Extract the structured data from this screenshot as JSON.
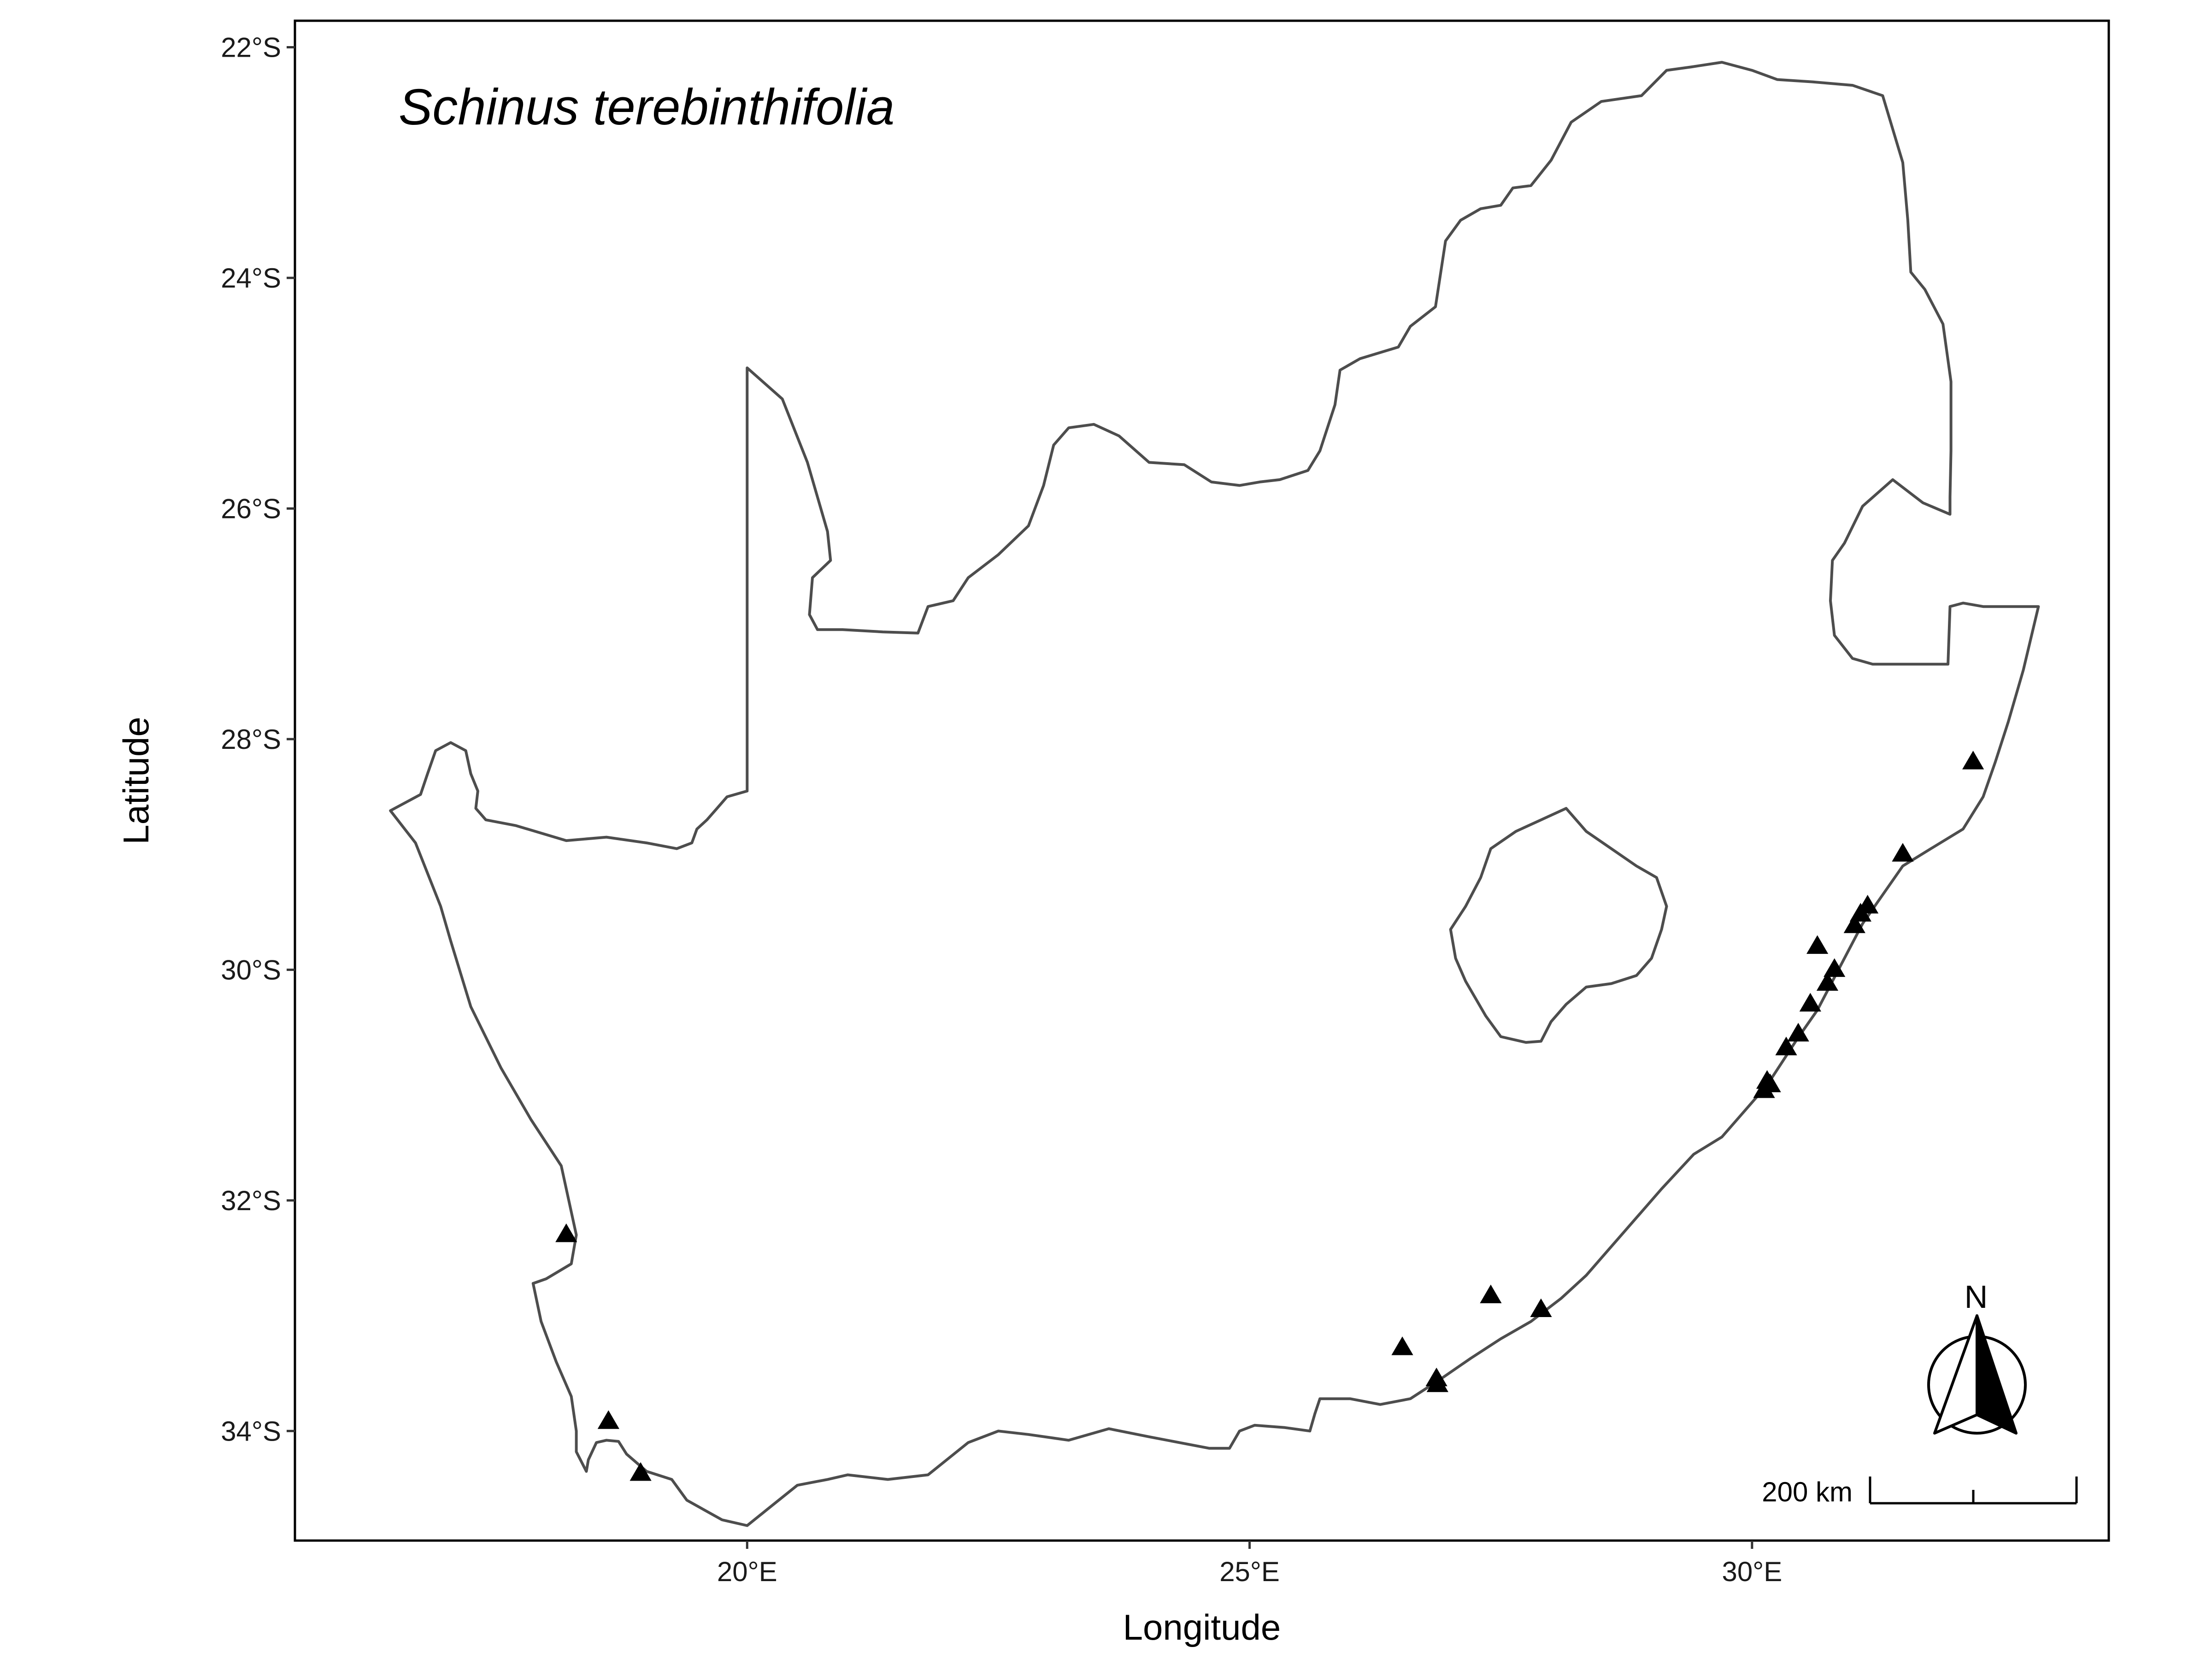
{
  "title": "Schinus terebinthifolia",
  "chart_data": {
    "type": "scatter",
    "title": "Schinus terebinthifolia",
    "xlabel": "Longitude",
    "ylabel": "Latitude",
    "xlim": [
      15.5,
      33.55
    ],
    "ylim": [
      -34.95,
      -21.77
    ],
    "x_ticks": [
      20,
      25,
      30
    ],
    "x_tick_labels": [
      "20°E",
      "25°E",
      "30°E"
    ],
    "y_ticks": [
      -22,
      -24,
      -26,
      -28,
      -30,
      -32,
      -34
    ],
    "y_tick_labels": [
      "22°S",
      "24°S",
      "26°S",
      "28°S",
      "30°S",
      "32°S",
      "34°S"
    ],
    "grid": false,
    "legend": "none",
    "marker": "triangle",
    "marker_color": "#000000",
    "outline_color": "#4d4d4d",
    "points": [
      {
        "lon": 18.2,
        "lat": -32.3
      },
      {
        "lon": 18.62,
        "lat": -33.92
      },
      {
        "lon": 18.94,
        "lat": -34.37
      },
      {
        "lon": 26.52,
        "lat": -33.28
      },
      {
        "lon": 26.86,
        "lat": -33.55
      },
      {
        "lon": 26.87,
        "lat": -33.6
      },
      {
        "lon": 27.4,
        "lat": -32.83
      },
      {
        "lon": 27.9,
        "lat": -32.95
      },
      {
        "lon": 30.12,
        "lat": -31.05
      },
      {
        "lon": 30.15,
        "lat": -30.97
      },
      {
        "lon": 30.18,
        "lat": -31.0
      },
      {
        "lon": 30.34,
        "lat": -30.68
      },
      {
        "lon": 30.46,
        "lat": -30.56
      },
      {
        "lon": 30.58,
        "lat": -30.3
      },
      {
        "lon": 30.75,
        "lat": -30.12
      },
      {
        "lon": 30.82,
        "lat": -30.0
      },
      {
        "lon": 30.65,
        "lat": -29.8
      },
      {
        "lon": 31.02,
        "lat": -29.62
      },
      {
        "lon": 31.08,
        "lat": -29.52
      },
      {
        "lon": 31.15,
        "lat": -29.45
      },
      {
        "lon": 31.5,
        "lat": -29.0
      },
      {
        "lon": 32.2,
        "lat": -28.2
      }
    ],
    "outline": {
      "south_africa": [
        [
          16.45,
          -28.62
        ],
        [
          16.75,
          -28.48
        ],
        [
          16.82,
          -28.3
        ],
        [
          16.9,
          -28.1
        ],
        [
          17.05,
          -28.03
        ],
        [
          17.2,
          -28.1
        ],
        [
          17.25,
          -28.3
        ],
        [
          17.32,
          -28.45
        ],
        [
          17.3,
          -28.6
        ],
        [
          17.4,
          -28.7
        ],
        [
          17.7,
          -28.75
        ],
        [
          18.2,
          -28.88
        ],
        [
          18.6,
          -28.85
        ],
        [
          19.0,
          -28.9
        ],
        [
          19.3,
          -28.95
        ],
        [
          19.45,
          -28.9
        ],
        [
          19.5,
          -28.78
        ],
        [
          19.6,
          -28.7
        ],
        [
          19.7,
          -28.6
        ],
        [
          19.8,
          -28.5
        ],
        [
          20.0,
          -28.45
        ],
        [
          20.0,
          -24.78
        ],
        [
          20.35,
          -25.05
        ],
        [
          20.6,
          -25.6
        ],
        [
          20.8,
          -26.2
        ],
        [
          20.83,
          -26.45
        ],
        [
          20.65,
          -26.6
        ],
        [
          20.62,
          -26.92
        ],
        [
          20.7,
          -27.05
        ],
        [
          20.95,
          -27.05
        ],
        [
          21.35,
          -27.07
        ],
        [
          21.7,
          -27.08
        ],
        [
          21.8,
          -26.85
        ],
        [
          22.05,
          -26.8
        ],
        [
          22.2,
          -26.6
        ],
        [
          22.5,
          -26.4
        ],
        [
          22.8,
          -26.15
        ],
        [
          22.95,
          -25.8
        ],
        [
          23.05,
          -25.45
        ],
        [
          23.2,
          -25.3
        ],
        [
          23.45,
          -25.27
        ],
        [
          23.7,
          -25.37
        ],
        [
          24.0,
          -25.6
        ],
        [
          24.35,
          -25.62
        ],
        [
          24.62,
          -25.77
        ],
        [
          24.9,
          -25.8
        ],
        [
          25.1,
          -25.77
        ],
        [
          25.3,
          -25.75
        ],
        [
          25.58,
          -25.67
        ],
        [
          25.7,
          -25.5
        ],
        [
          25.85,
          -25.1
        ],
        [
          25.9,
          -24.8
        ],
        [
          26.1,
          -24.7
        ],
        [
          26.48,
          -24.6
        ],
        [
          26.6,
          -24.42
        ],
        [
          26.85,
          -24.25
        ],
        [
          26.95,
          -23.68
        ],
        [
          27.1,
          -23.5
        ],
        [
          27.3,
          -23.4
        ],
        [
          27.5,
          -23.37
        ],
        [
          27.62,
          -23.22
        ],
        [
          27.8,
          -23.2
        ],
        [
          28.0,
          -22.98
        ],
        [
          28.2,
          -22.65
        ],
        [
          28.5,
          -22.47
        ],
        [
          28.9,
          -22.42
        ],
        [
          29.15,
          -22.2
        ],
        [
          29.4,
          -22.17
        ],
        [
          29.7,
          -22.13
        ],
        [
          30.0,
          -22.2
        ],
        [
          30.25,
          -22.28
        ],
        [
          30.6,
          -22.3
        ],
        [
          31.0,
          -22.33
        ],
        [
          31.3,
          -22.42
        ],
        [
          31.5,
          -23.0
        ],
        [
          31.55,
          -23.5
        ],
        [
          31.58,
          -23.95
        ],
        [
          31.72,
          -24.1
        ],
        [
          31.9,
          -24.4
        ],
        [
          31.98,
          -24.9
        ],
        [
          31.98,
          -25.5
        ],
        [
          31.97,
          -25.9
        ],
        [
          31.97,
          -26.05
        ],
        [
          31.7,
          -25.95
        ],
        [
          31.4,
          -25.75
        ],
        [
          31.1,
          -25.98
        ],
        [
          30.92,
          -26.3
        ],
        [
          30.8,
          -26.45
        ],
        [
          30.78,
          -26.8
        ],
        [
          30.82,
          -27.1
        ],
        [
          31.0,
          -27.3
        ],
        [
          31.2,
          -27.35
        ],
        [
          31.95,
          -27.35
        ],
        [
          31.97,
          -26.85
        ],
        [
          32.1,
          -26.82
        ],
        [
          32.3,
          -26.85
        ],
        [
          32.85,
          -26.85
        ],
        [
          32.7,
          -27.4
        ],
        [
          32.55,
          -27.85
        ],
        [
          32.42,
          -28.2
        ],
        [
          32.3,
          -28.5
        ],
        [
          32.1,
          -28.78
        ],
        [
          31.78,
          -28.95
        ],
        [
          31.5,
          -29.1
        ],
        [
          31.3,
          -29.35
        ],
        [
          31.1,
          -29.6
        ],
        [
          30.95,
          -29.85
        ],
        [
          30.8,
          -30.1
        ],
        [
          30.65,
          -30.35
        ],
        [
          30.45,
          -30.6
        ],
        [
          30.3,
          -30.8
        ],
        [
          30.15,
          -31.0
        ],
        [
          29.9,
          -31.25
        ],
        [
          29.7,
          -31.45
        ],
        [
          29.42,
          -31.6
        ],
        [
          29.1,
          -31.9
        ],
        [
          28.8,
          -32.2
        ],
        [
          28.55,
          -32.45
        ],
        [
          28.35,
          -32.65
        ],
        [
          28.1,
          -32.85
        ],
        [
          27.8,
          -33.05
        ],
        [
          27.5,
          -33.2
        ],
        [
          27.2,
          -33.37
        ],
        [
          26.9,
          -33.55
        ],
        [
          26.6,
          -33.72
        ],
        [
          26.3,
          -33.77
        ],
        [
          26.0,
          -33.72
        ],
        [
          25.7,
          -33.72
        ],
        [
          25.65,
          -33.85
        ],
        [
          25.6,
          -34.0
        ],
        [
          25.35,
          -33.97
        ],
        [
          25.05,
          -33.95
        ],
        [
          24.9,
          -34.0
        ],
        [
          24.8,
          -34.15
        ],
        [
          24.6,
          -34.15
        ],
        [
          24.3,
          -34.1
        ],
        [
          24.0,
          -34.05
        ],
        [
          23.6,
          -33.98
        ],
        [
          23.2,
          -34.08
        ],
        [
          22.8,
          -34.03
        ],
        [
          22.5,
          -34.0
        ],
        [
          22.2,
          -34.1
        ],
        [
          21.8,
          -34.38
        ],
        [
          21.4,
          -34.42
        ],
        [
          21.0,
          -34.38
        ],
        [
          20.8,
          -34.42
        ],
        [
          20.5,
          -34.47
        ],
        [
          20.2,
          -34.68
        ],
        [
          20.0,
          -34.82
        ],
        [
          19.75,
          -34.77
        ],
        [
          19.4,
          -34.6
        ],
        [
          19.25,
          -34.42
        ],
        [
          19.0,
          -34.35
        ],
        [
          18.8,
          -34.2
        ],
        [
          18.72,
          -34.09
        ],
        [
          18.6,
          -34.08
        ],
        [
          18.5,
          -34.1
        ],
        [
          18.42,
          -34.25
        ],
        [
          18.4,
          -34.35
        ],
        [
          18.3,
          -34.18
        ],
        [
          18.3,
          -34.0
        ],
        [
          18.25,
          -33.7
        ],
        [
          18.1,
          -33.4
        ],
        [
          17.95,
          -33.05
        ],
        [
          17.87,
          -32.72
        ],
        [
          18.0,
          -32.68
        ],
        [
          18.25,
          -32.55
        ],
        [
          18.3,
          -32.3
        ],
        [
          18.15,
          -31.7
        ],
        [
          17.85,
          -31.3
        ],
        [
          17.55,
          -30.85
        ],
        [
          17.25,
          -30.32
        ],
        [
          17.05,
          -29.75
        ],
        [
          16.95,
          -29.45
        ],
        [
          16.7,
          -28.9
        ],
        [
          16.45,
          -28.62
        ]
      ],
      "lesotho": [
        [
          27.0,
          -29.65
        ],
        [
          27.15,
          -29.45
        ],
        [
          27.3,
          -29.2
        ],
        [
          27.4,
          -28.95
        ],
        [
          27.65,
          -28.8
        ],
        [
          27.9,
          -28.7
        ],
        [
          28.15,
          -28.6
        ],
        [
          28.35,
          -28.8
        ],
        [
          28.6,
          -28.95
        ],
        [
          28.85,
          -29.1
        ],
        [
          29.05,
          -29.2
        ],
        [
          29.15,
          -29.45
        ],
        [
          29.1,
          -29.65
        ],
        [
          29.0,
          -29.9
        ],
        [
          28.85,
          -30.05
        ],
        [
          28.6,
          -30.12
        ],
        [
          28.35,
          -30.15
        ],
        [
          28.15,
          -30.3
        ],
        [
          28.0,
          -30.45
        ],
        [
          27.9,
          -30.62
        ],
        [
          27.75,
          -30.63
        ],
        [
          27.5,
          -30.58
        ],
        [
          27.35,
          -30.4
        ],
        [
          27.25,
          -30.25
        ],
        [
          27.15,
          -30.1
        ],
        [
          27.05,
          -29.9
        ],
        [
          27.0,
          -29.65
        ]
      ]
    }
  },
  "axes": {
    "xlabel": "Longitude",
    "ylabel": "Latitude"
  },
  "scale_bar": {
    "label": "200 km"
  },
  "north_arrow": {
    "label": "N"
  }
}
